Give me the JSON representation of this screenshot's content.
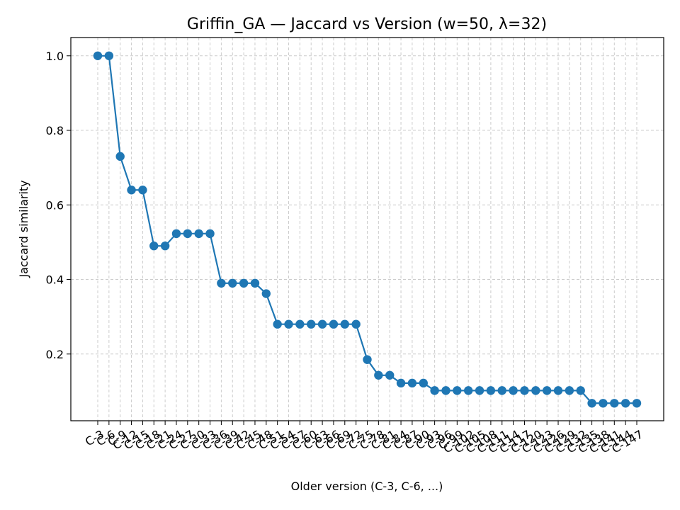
{
  "chart_data": {
    "type": "line",
    "title": "Griffin_GA — Jaccard vs Version (w=50, λ=32)",
    "xlabel": "Older version (C-3, C-6, ...)",
    "ylabel": "Jaccard similarity",
    "categories": [
      "C-3",
      "C-6",
      "C-9",
      "C-12",
      "C-15",
      "C-18",
      "C-21",
      "C-24",
      "C-27",
      "C-30",
      "C-33",
      "C-36",
      "C-39",
      "C-42",
      "C-45",
      "C-48",
      "C-51",
      "C-54",
      "C-57",
      "C-60",
      "C-63",
      "C-66",
      "C-69",
      "C-72",
      "C-75",
      "C-78",
      "C-81",
      "C-84",
      "C-87",
      "C-90",
      "C-93",
      "C-96",
      "C-99",
      "C-102",
      "C-105",
      "C-108",
      "C-111",
      "C-114",
      "C-117",
      "C-120",
      "C-123",
      "C-126",
      "C-129",
      "C-132",
      "C-135",
      "C-138",
      "C-141",
      "C-144",
      "C-147"
    ],
    "series": [
      {
        "values": [
          1.0,
          1.0,
          0.73,
          0.64,
          0.64,
          0.49,
          0.49,
          0.523,
          0.523,
          0.523,
          0.523,
          0.39,
          0.39,
          0.39,
          0.39,
          0.362,
          0.28,
          0.28,
          0.28,
          0.28,
          0.28,
          0.28,
          0.28,
          0.28,
          0.185,
          0.143,
          0.143,
          0.122,
          0.122,
          0.122,
          0.102,
          0.102,
          0.102,
          0.102,
          0.102,
          0.102,
          0.102,
          0.102,
          0.102,
          0.102,
          0.102,
          0.102,
          0.102,
          0.102,
          0.068,
          0.068,
          0.068,
          0.068,
          0.068
        ],
        "color": "#1f77b4"
      }
    ],
    "yticks": [
      0.2,
      0.4,
      0.6,
      0.8,
      1.0
    ],
    "ytick_labels": [
      "0.2",
      "0.4",
      "0.6",
      "0.8",
      "1.0"
    ],
    "ylim": [
      0.021,
      1.049
    ],
    "grid": true,
    "grid_style": "dashed"
  }
}
